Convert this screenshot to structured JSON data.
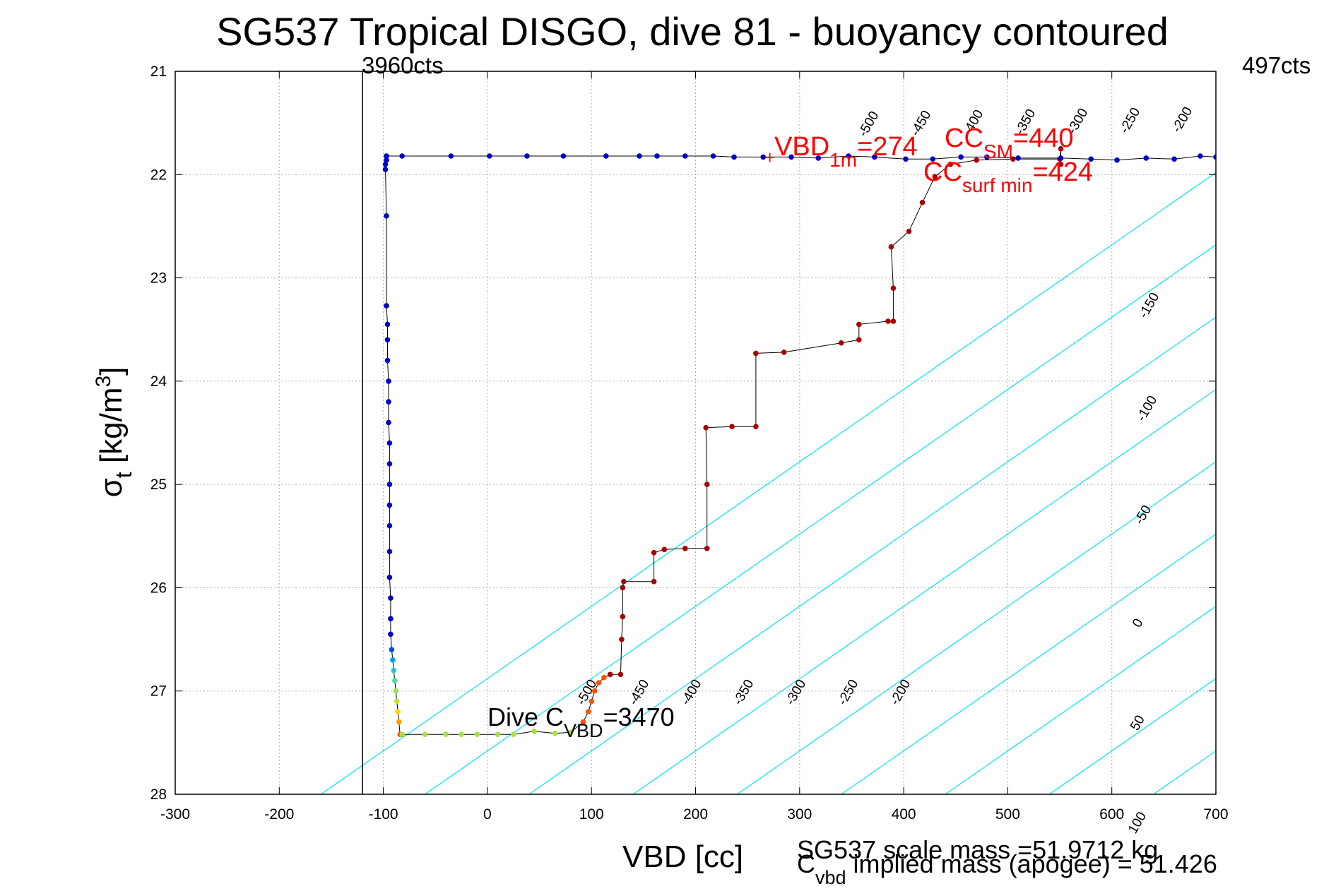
{
  "chart_data": {
    "type": "scatter",
    "title": "SG537 Tropical DISGO, dive 81 - buoyancy contoured",
    "xlabel": "VBD [cc]",
    "ylabel": "σt [kg/m3]",
    "xlim": [
      -300,
      700
    ],
    "ylim": [
      21,
      28
    ],
    "y_reversed": true,
    "grid": true,
    "xticks": [
      "-300",
      "-200",
      "-100",
      "0",
      "100",
      "200",
      "300",
      "400",
      "500",
      "600",
      "700"
    ],
    "yticks": [
      "21",
      "22",
      "23",
      "24",
      "25",
      "26",
      "27",
      "28"
    ],
    "colors": {
      "contour": "#00e5ee",
      "contour_zero": "#0000ff",
      "contour_pos": "#ff00ff",
      "dive_descent": "#0000c8",
      "climb": "#aa0000",
      "annotation_red": "#ff0000",
      "grid": "#b0b0b0"
    },
    "vertical_line": {
      "x": -120
    },
    "top_labels": {
      "left": "3960cts",
      "right": "497cts"
    },
    "annotations": {
      "vbd_1m": {
        "main": "VBD",
        "sub": "1m",
        "value": "=274"
      },
      "cc_sm": {
        "main": "CC",
        "sub": "SM",
        "value": "=440"
      },
      "cc_surf_min": {
        "main": "CC",
        "sub": "surf min",
        "value": "=424"
      },
      "dive_c_vbd": {
        "main": "Dive C",
        "sub": "VBD",
        "value": "=3470"
      }
    },
    "footer": {
      "scale_mass": "SG537 scale mass =51.9712 kg",
      "implied_main": "C",
      "implied_sub": "vbd",
      "implied_rest": " implied mass (apogee) = 51.426"
    },
    "contours": [
      {
        "level": "-500",
        "label_top": true,
        "label_bottom": true
      },
      {
        "level": "-450",
        "label_top": true,
        "label_bottom": true
      },
      {
        "level": "-400",
        "label_top": true,
        "label_bottom": true
      },
      {
        "level": "-350",
        "label_top": true,
        "label_bottom": true
      },
      {
        "level": "-300",
        "label_top": true,
        "label_bottom": true
      },
      {
        "level": "-250",
        "label_top": true,
        "label_bottom": true
      },
      {
        "level": "-200",
        "label_top": true,
        "label_bottom": true
      },
      {
        "level": "-150",
        "label_right": true
      },
      {
        "level": "-100",
        "label_right": true
      },
      {
        "level": "-50",
        "label_right": true
      },
      {
        "level": "0",
        "label_right": true
      },
      {
        "level": "50",
        "label_right": true
      },
      {
        "level": "100",
        "label_right": true
      }
    ],
    "series": [
      {
        "name": "",
        "role": "dive",
        "points": [
          [
            -97,
            21.82
          ],
          [
            -97,
            21.86
          ],
          [
            -98,
            21.9
          ],
          [
            -98,
            21.95
          ],
          [
            -97,
            22.4
          ],
          [
            -97,
            23.27
          ],
          [
            -96,
            23.45
          ],
          [
            -96,
            23.6
          ],
          [
            -96,
            23.8
          ],
          [
            -95,
            24.0
          ],
          [
            -95,
            24.2
          ],
          [
            -95,
            24.4
          ],
          [
            -94,
            24.6
          ],
          [
            -94,
            24.8
          ],
          [
            -94,
            25.0
          ],
          [
            -94,
            25.2
          ],
          [
            -94,
            25.4
          ],
          [
            -94,
            25.65
          ],
          [
            -94,
            25.9
          ],
          [
            -93,
            26.1
          ],
          [
            -93,
            26.3
          ],
          [
            -93,
            26.45
          ],
          [
            -92,
            26.6
          ],
          [
            -91,
            26.7
          ],
          [
            -90,
            26.8
          ],
          [
            -89,
            26.9
          ],
          [
            -88,
            27.0
          ],
          [
            -87,
            27.1
          ],
          [
            -86,
            27.2
          ],
          [
            -85,
            27.3
          ],
          [
            -84,
            27.42
          ],
          [
            -82,
            27.42
          ]
        ]
      },
      {
        "name": "",
        "role": "bottom",
        "points": [
          [
            -82,
            27.42
          ],
          [
            -60,
            27.42
          ],
          [
            -40,
            27.42
          ],
          [
            -25,
            27.42
          ],
          [
            -10,
            27.42
          ],
          [
            10,
            27.42
          ],
          [
            25,
            27.42
          ],
          [
            45,
            27.39
          ],
          [
            65,
            27.41
          ],
          [
            80,
            27.4
          ],
          [
            92,
            27.3
          ],
          [
            97,
            27.2
          ],
          [
            100,
            27.1
          ],
          [
            103,
            27.0
          ],
          [
            107,
            26.92
          ],
          [
            112,
            26.87
          ],
          [
            118,
            26.84
          ]
        ]
      },
      {
        "name": "",
        "role": "climb",
        "points": [
          [
            118,
            26.84
          ],
          [
            128,
            26.84
          ],
          [
            129,
            26.5
          ],
          [
            130,
            26.28
          ],
          [
            130,
            26.0
          ],
          [
            131,
            25.94
          ],
          [
            160,
            25.94
          ],
          [
            160,
            25.66
          ],
          [
            170,
            25.63
          ],
          [
            190,
            25.62
          ],
          [
            211,
            25.62
          ],
          [
            211,
            25.0
          ],
          [
            210,
            24.45
          ],
          [
            235,
            24.44
          ],
          [
            258,
            24.44
          ],
          [
            258,
            23.73
          ],
          [
            285,
            23.72
          ],
          [
            340,
            23.63
          ],
          [
            357,
            23.6
          ],
          [
            357,
            23.45
          ],
          [
            385,
            23.42
          ],
          [
            390,
            23.42
          ],
          [
            390,
            23.1
          ],
          [
            388,
            22.7
          ],
          [
            405,
            22.55
          ],
          [
            418,
            22.27
          ],
          [
            430,
            22.02
          ],
          [
            445,
            21.9
          ],
          [
            470,
            21.86
          ],
          [
            505,
            21.85
          ],
          [
            550,
            21.85
          ],
          [
            551,
            21.75
          ],
          [
            551,
            21.9
          ]
        ]
      },
      {
        "name": "",
        "role": "surface",
        "points": [
          [
            -97,
            21.82
          ],
          [
            -82,
            21.82
          ],
          [
            -35,
            21.82
          ],
          [
            2,
            21.82
          ],
          [
            38,
            21.82
          ],
          [
            73,
            21.82
          ],
          [
            114,
            21.82
          ],
          [
            146,
            21.82
          ],
          [
            163,
            21.82
          ],
          [
            190,
            21.82
          ],
          [
            217,
            21.82
          ],
          [
            237,
            21.83
          ],
          [
            265,
            21.83
          ],
          [
            292,
            21.83
          ],
          [
            318,
            21.84
          ],
          [
            347,
            21.82
          ],
          [
            372,
            21.83
          ],
          [
            402,
            21.85
          ],
          [
            428,
            21.85
          ],
          [
            455,
            21.83
          ],
          [
            480,
            21.83
          ],
          [
            510,
            21.84
          ],
          [
            551,
            21.84
          ],
          [
            580,
            21.85
          ],
          [
            605,
            21.86
          ],
          [
            633,
            21.84
          ],
          [
            660,
            21.85
          ],
          [
            685,
            21.82
          ],
          [
            700,
            21.83
          ]
        ]
      }
    ]
  }
}
